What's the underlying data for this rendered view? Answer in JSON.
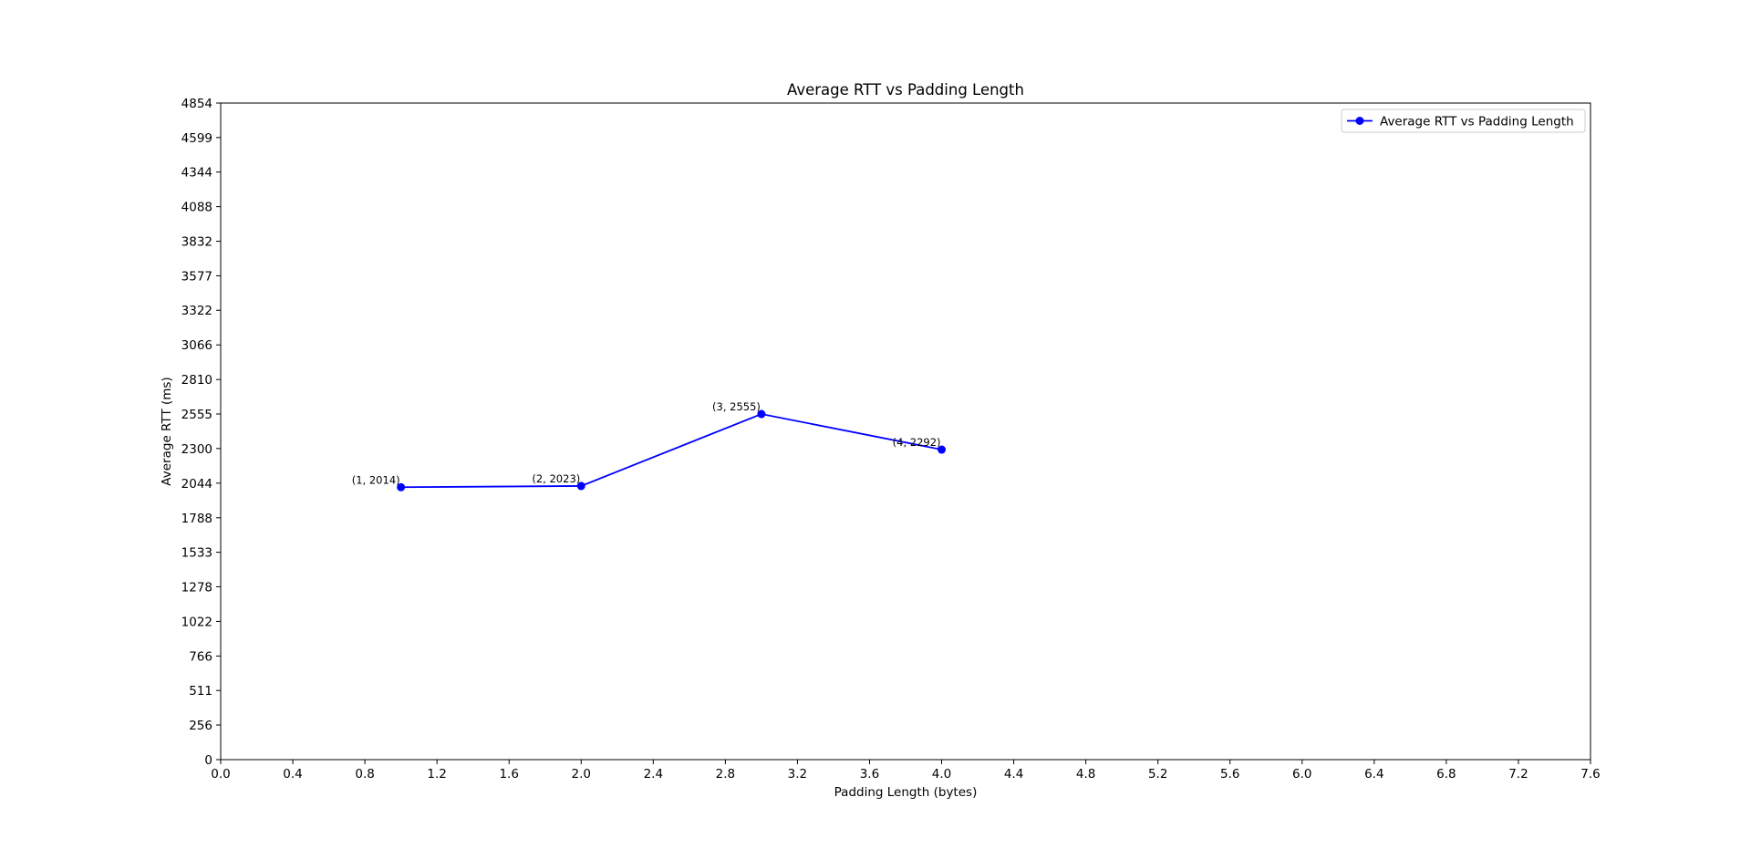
{
  "chart_data": {
    "type": "line",
    "title": "Average RTT vs Padding Length",
    "xlabel": "Padding Length (bytes)",
    "ylabel": "Average RTT (ms)",
    "xlim": [
      0.0,
      7.6
    ],
    "ylim": [
      0,
      4854
    ],
    "x_ticks": [
      "0.0",
      "0.4",
      "0.8",
      "1.2",
      "1.6",
      "2.0",
      "2.4",
      "2.8",
      "3.2",
      "3.6",
      "4.0",
      "4.4",
      "4.8",
      "5.2",
      "5.6",
      "6.0",
      "6.4",
      "6.8",
      "7.2",
      "7.6"
    ],
    "y_ticks": [
      "0",
      "256",
      "511",
      "766",
      "1022",
      "1278",
      "1533",
      "1788",
      "2044",
      "2300",
      "2555",
      "2810",
      "3066",
      "3322",
      "3577",
      "3832",
      "4088",
      "4344",
      "4599",
      "4854"
    ],
    "grid": false,
    "legend_position": "upper right",
    "series": [
      {
        "name": "Average RTT vs Padding Length",
        "color": "#0000ff",
        "marker": "circle",
        "x": [
          1,
          2,
          3,
          4
        ],
        "y": [
          2014,
          2023,
          2555,
          2292
        ],
        "point_labels": [
          "(1, 2014)",
          "(2, 2023)",
          "(3, 2555)",
          "(4, 2292)"
        ]
      }
    ]
  }
}
